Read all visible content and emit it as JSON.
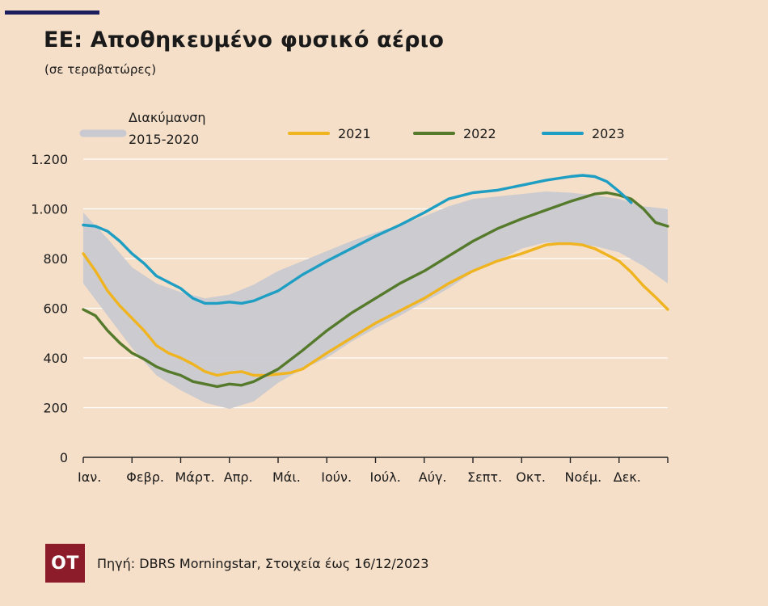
{
  "title": "ΕΕ: Αποθηκευμένο φυσικό αέριο",
  "subtitle": "(σε τεραβατώρες)",
  "source": "Πηγή: DBRS Morningstar, Στοιχεία έως 16/12/2023",
  "logo_text": "OT",
  "colors": {
    "background": "#f5dfc8",
    "band": "#c9c9d1",
    "y2021": "#efb420",
    "y2022": "#557a2c",
    "y2023": "#1f9ec4",
    "axis": "#222222",
    "grid": "#ffffff",
    "accent_bar": "#1c1e5e",
    "logo_bg": "#8c1c2a"
  },
  "chart_data": {
    "type": "line",
    "ylim": [
      0,
      1200
    ],
    "yticks": [
      0,
      200,
      400,
      600,
      800,
      1000,
      1200
    ],
    "ytick_labels": [
      "0",
      "200",
      "400",
      "600",
      "800",
      "1.000",
      "1.200"
    ],
    "xlim": [
      0,
      12
    ],
    "x_months": [
      "Ιαν.",
      "Φεβρ.",
      "Μάρτ.",
      "Απρ.",
      "Μάι.",
      "Ιούν.",
      "Ιούλ.",
      "Αύγ.",
      "Σεπτ.",
      "Οκτ.",
      "Νοέμ.",
      "Δεκ."
    ],
    "grid": true,
    "legend_position": "top",
    "band": {
      "name": "Διακύμανση 2015-2020",
      "name_lines": [
        "Διακύμανση",
        "2015-2020"
      ],
      "x": [
        0,
        0.5,
        1,
        1.5,
        2,
        2.5,
        3,
        3.5,
        4,
        4.5,
        5,
        5.5,
        6,
        6.5,
        7,
        7.5,
        8,
        8.5,
        9,
        9.5,
        10,
        10.5,
        11,
        11.5,
        12
      ],
      "upper": [
        985,
        880,
        765,
        700,
        665,
        640,
        655,
        695,
        750,
        790,
        830,
        870,
        905,
        935,
        970,
        1010,
        1040,
        1050,
        1060,
        1070,
        1065,
        1055,
        1040,
        1010,
        1000
      ],
      "lower": [
        700,
        570,
        440,
        330,
        270,
        220,
        195,
        225,
        300,
        355,
        400,
        465,
        520,
        570,
        625,
        680,
        745,
        790,
        840,
        865,
        860,
        850,
        825,
        770,
        700
      ]
    },
    "series": [
      {
        "name": "2021",
        "color_key": "y2021",
        "x": [
          0,
          0.25,
          0.5,
          0.75,
          1,
          1.25,
          1.5,
          1.75,
          2,
          2.25,
          2.5,
          2.75,
          3,
          3.25,
          3.5,
          3.75,
          4,
          4.25,
          4.5,
          5,
          5.5,
          6,
          6.5,
          7,
          7.5,
          8,
          8.5,
          9,
          9.5,
          9.75,
          10,
          10.25,
          10.5,
          10.75,
          11,
          11.25,
          11.5,
          11.75,
          12
        ],
        "y": [
          820,
          750,
          670,
          610,
          560,
          510,
          450,
          420,
          400,
          375,
          345,
          330,
          340,
          345,
          330,
          330,
          335,
          340,
          355,
          420,
          480,
          540,
          590,
          640,
          700,
          750,
          790,
          820,
          855,
          860,
          860,
          855,
          840,
          815,
          790,
          745,
          690,
          645,
          595
        ]
      },
      {
        "name": "2022",
        "color_key": "y2022",
        "x": [
          0,
          0.25,
          0.5,
          0.75,
          1,
          1.25,
          1.5,
          1.75,
          2,
          2.25,
          2.5,
          2.75,
          3,
          3.25,
          3.5,
          3.75,
          4,
          4.5,
          5,
          5.5,
          6,
          6.5,
          7,
          7.5,
          8,
          8.5,
          9,
          9.5,
          10,
          10.25,
          10.5,
          10.75,
          11,
          11.25,
          11.5,
          11.75,
          12
        ],
        "y": [
          595,
          570,
          510,
          460,
          420,
          395,
          365,
          345,
          330,
          305,
          295,
          285,
          295,
          290,
          305,
          330,
          355,
          430,
          510,
          580,
          640,
          700,
          750,
          810,
          870,
          920,
          960,
          995,
          1030,
          1045,
          1060,
          1065,
          1055,
          1040,
          1000,
          945,
          930
        ]
      },
      {
        "name": "2023",
        "color_key": "y2023",
        "x": [
          0,
          0.25,
          0.5,
          0.75,
          1,
          1.25,
          1.5,
          1.75,
          2,
          2.25,
          2.5,
          2.75,
          3,
          3.25,
          3.5,
          3.75,
          4,
          4.5,
          5,
          5.5,
          6,
          6.5,
          7,
          7.5,
          8,
          8.5,
          9,
          9.5,
          10,
          10.25,
          10.5,
          10.75,
          11,
          11.25
        ],
        "y": [
          935,
          930,
          910,
          870,
          820,
          780,
          730,
          705,
          680,
          640,
          620,
          620,
          625,
          620,
          630,
          650,
          670,
          735,
          790,
          840,
          890,
          935,
          985,
          1040,
          1065,
          1075,
          1095,
          1115,
          1130,
          1135,
          1130,
          1110,
          1070,
          1025
        ]
      }
    ]
  }
}
